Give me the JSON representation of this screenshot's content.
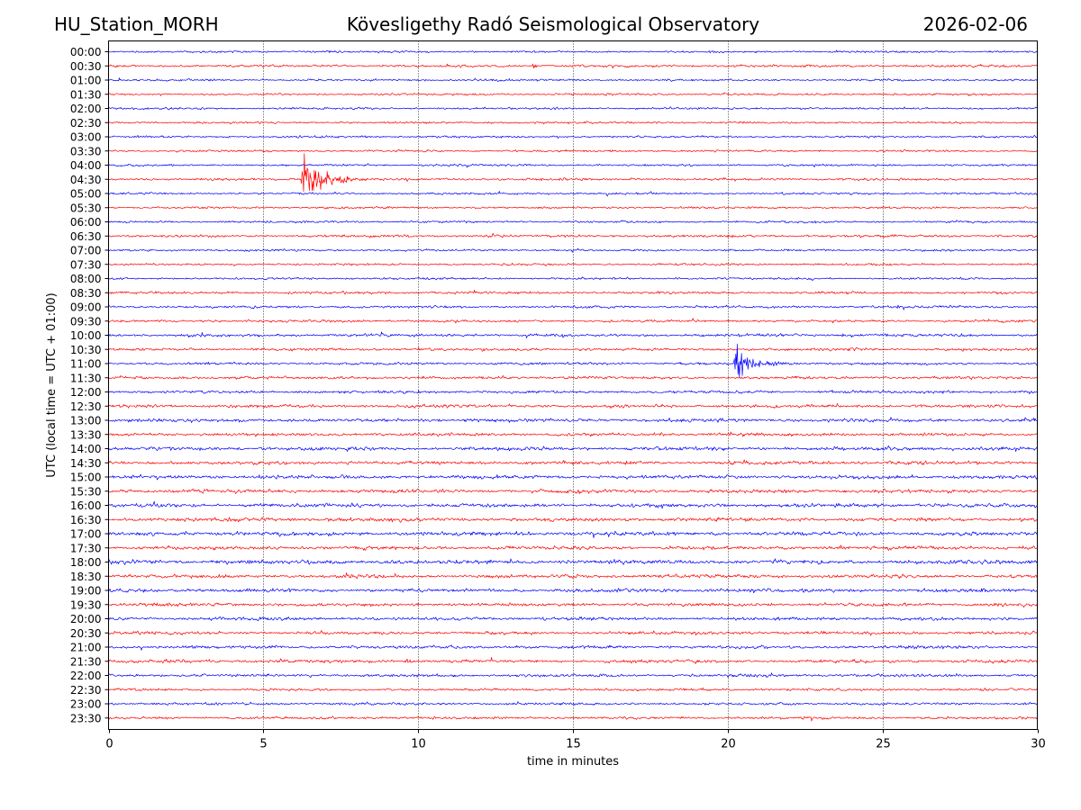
{
  "header": {
    "station": "HU_Station_MORH",
    "title": "Kövesligethy Radó Seismological Observatory",
    "date": "2026-02-06"
  },
  "chart_data": {
    "type": "line",
    "title": "Kövesligethy Radó Seismological Observatory",
    "xlabel": "time in minutes",
    "ylabel": "UTC (local time = UTC + 01:00)",
    "xlim": [
      0,
      30
    ],
    "xticks": [
      0,
      5,
      10,
      15,
      20,
      25,
      30
    ],
    "vgrid": "dotted",
    "trace_colors": [
      "#0000ff",
      "#ff0000"
    ],
    "trace_labels": [
      "00:00",
      "00:30",
      "01:00",
      "01:30",
      "02:00",
      "02:30",
      "03:00",
      "03:30",
      "04:00",
      "04:30",
      "05:00",
      "05:30",
      "06:00",
      "06:30",
      "07:00",
      "07:30",
      "08:00",
      "08:30",
      "09:00",
      "09:30",
      "10:00",
      "10:30",
      "11:00",
      "11:30",
      "12:00",
      "12:30",
      "13:00",
      "13:30",
      "14:00",
      "14:30",
      "15:00",
      "15:30",
      "16:00",
      "16:30",
      "17:00",
      "17:30",
      "18:00",
      "18:30",
      "19:00",
      "19:30",
      "20:00",
      "20:30",
      "21:00",
      "21:30",
      "22:00",
      "22:30",
      "23:00",
      "23:30"
    ],
    "noise_level": [
      0.6,
      0.7,
      0.6,
      0.6,
      0.6,
      0.6,
      0.6,
      0.6,
      0.6,
      0.7,
      0.6,
      0.6,
      0.6,
      0.7,
      0.6,
      0.6,
      0.6,
      0.7,
      0.7,
      0.7,
      0.8,
      0.8,
      0.7,
      0.8,
      0.8,
      0.9,
      1.0,
      0.9,
      1.0,
      1.0,
      1.0,
      1.0,
      1.1,
      1.1,
      1.1,
      1.0,
      1.2,
      1.0,
      1.0,
      0.9,
      0.9,
      0.9,
      0.9,
      0.9,
      0.8,
      0.7,
      0.7,
      0.7
    ],
    "events": [
      {
        "trace": "00:30",
        "onset_min": 13.7,
        "amplitude": 5,
        "duration_min": 0.3
      },
      {
        "trace": "04:30",
        "onset_min": 6.2,
        "amplitude": 25,
        "duration_min": 2.6
      },
      {
        "trace": "11:00",
        "onset_min": 20.2,
        "amplitude": 20,
        "duration_min": 2.2
      },
      {
        "trace": "12:00",
        "onset_min": 11.2,
        "amplitude": 3,
        "duration_min": 0.6
      },
      {
        "trace": "21:30",
        "onset_min": 9.6,
        "amplitude": 3,
        "duration_min": 0.6
      }
    ]
  }
}
